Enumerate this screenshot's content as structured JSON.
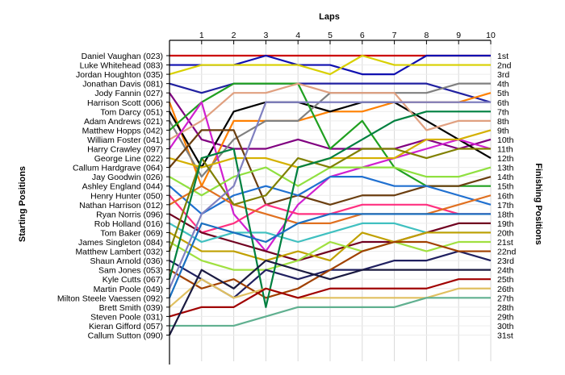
{
  "chart_data": {
    "type": "line",
    "title": "",
    "xlabel": "Laps",
    "ylabel_left": "Starting Positions",
    "ylabel_right": "Finishing Positions",
    "laps": [
      "1",
      "2",
      "3",
      "4",
      "5",
      "6",
      "7",
      "8",
      "9",
      "10"
    ],
    "finishing_positions": [
      "1st",
      "2nd",
      "3rd",
      "4th",
      "5th",
      "6th",
      "7th",
      "8th",
      "9th",
      "10th",
      "11th",
      "12th",
      "13th",
      "14th",
      "15th",
      "16th",
      "17th",
      "18th",
      "19th",
      "20th",
      "21st",
      "22nd",
      "23rd",
      "24th",
      "25th",
      "26th",
      "27th",
      "28th",
      "29th",
      "30th",
      "31st"
    ],
    "grid": true,
    "series": [
      {
        "name": "Daniel Vaughan (023)",
        "color": "#cc0000",
        "positions": [
          1,
          1,
          1,
          1,
          1,
          1,
          1,
          1,
          1,
          1,
          1
        ]
      },
      {
        "name": "Luke Whitehead (083)",
        "color": "#1010b0",
        "positions": [
          2,
          2,
          2,
          1,
          2,
          2,
          3,
          3,
          1,
          1,
          1
        ]
      },
      {
        "name": "Jordan Houghton (035)",
        "color": "#d8d000",
        "positions": [
          3,
          2,
          2,
          2,
          2,
          3,
          1,
          2,
          2,
          2,
          2
        ]
      },
      {
        "name": "Jonathan Davis (081)",
        "color": "#2020a0",
        "positions": [
          4,
          5,
          4,
          4,
          4,
          4,
          4,
          4,
          4,
          5,
          6
        ]
      },
      {
        "name": "Jody Fannin (027)",
        "color": "#800080",
        "positions": [
          5,
          10,
          11,
          11,
          10,
          11,
          11,
          11,
          10,
          11,
          10
        ]
      },
      {
        "name": "Harrison Scott (006)",
        "color": "#ff8000",
        "positions": [
          6,
          15,
          8,
          8,
          8,
          7,
          7,
          6,
          6,
          6,
          5
        ]
      },
      {
        "name": "Tom Darcy (051)",
        "color": "#000000",
        "positions": [
          7,
          13,
          7,
          6,
          6,
          7,
          6,
          6,
          8,
          10,
          12
        ]
      },
      {
        "name": "Adam Andrews (021)",
        "color": "#808080",
        "positions": [
          8,
          14,
          10,
          8,
          8,
          5,
          5,
          5,
          5,
          4,
          4
        ]
      },
      {
        "name": "Matthew Hopps (042)",
        "color": "#20a020",
        "positions": [
          9,
          6,
          4,
          4,
          4,
          11,
          8,
          13,
          15,
          15,
          15
        ]
      },
      {
        "name": "William Foster (041)",
        "color": "#e0a080",
        "positions": [
          10,
          8,
          5,
          5,
          4,
          5,
          5,
          5,
          9,
          8,
          8
        ]
      },
      {
        "name": "Harry Crawley (097)",
        "color": "#d020d0",
        "positions": [
          11,
          6,
          18,
          22,
          17,
          14,
          13,
          12,
          11,
          10,
          11
        ]
      },
      {
        "name": "George Line (022)",
        "color": "#d4b000",
        "positions": [
          12,
          13,
          12,
          12,
          13,
          12,
          12,
          12,
          10,
          10,
          9
        ]
      },
      {
        "name": "Callum Hardgrave (064)",
        "color": "#6b3f10",
        "positions": [
          13,
          9,
          9,
          17,
          16,
          17,
          16,
          16,
          15,
          15,
          14
        ]
      },
      {
        "name": "Jay Goodwin (026)",
        "color": "#90e040",
        "positions": [
          14,
          16,
          14,
          13,
          15,
          13,
          13,
          13,
          14,
          14,
          13
        ]
      },
      {
        "name": "Ashley England (044)",
        "color": "#2070d0",
        "positions": [
          15,
          18,
          16,
          15,
          16,
          14,
          14,
          15,
          15,
          16,
          17
        ]
      },
      {
        "name": "Henry Hunter (050)",
        "color": "#ff3080",
        "positions": [
          16,
          20,
          19,
          17,
          18,
          18,
          17,
          17,
          17,
          18,
          18
        ]
      },
      {
        "name": "Nathan Harrison (012)",
        "color": "#e07020",
        "positions": [
          17,
          15,
          17,
          18,
          19,
          19,
          18,
          18,
          18,
          17,
          16
        ]
      },
      {
        "name": "Ryan Norris (096)",
        "color": "#700020",
        "positions": [
          18,
          20,
          21,
          22,
          23,
          22,
          21,
          21,
          20,
          19,
          19
        ]
      },
      {
        "name": "Rob Holland (016)",
        "color": "#40c0c0",
        "positions": [
          19,
          21,
          20,
          20,
          21,
          20,
          19,
          19,
          20,
          20,
          20
        ]
      },
      {
        "name": "Tom Baker (069)",
        "color": "#c0a000",
        "positions": [
          20,
          22,
          22,
          23,
          22,
          23,
          20,
          21,
          20,
          20,
          20
        ]
      },
      {
        "name": "James Singleton (084)",
        "color": "#a0e040",
        "positions": [
          21,
          23,
          24,
          24,
          23,
          21,
          22,
          21,
          22,
          21,
          21
        ]
      },
      {
        "name": "Matthew Lambert (032)",
        "color": "#808000",
        "positions": [
          22,
          12,
          17,
          16,
          12,
          13,
          11,
          11,
          12,
          11,
          11
        ]
      },
      {
        "name": "Shaun Arnold (036)",
        "color": "#202060",
        "positions": [
          23,
          25,
          27,
          24,
          25,
          24,
          24,
          23,
          23,
          22,
          23
        ]
      },
      {
        "name": "Sam Jones (053)",
        "color": "#a04000",
        "positions": [
          24,
          26,
          25,
          27,
          26,
          24,
          22,
          21,
          21,
          22,
          22
        ]
      },
      {
        "name": "Kyle Cutts (067)",
        "color": "#008040",
        "positions": [
          25,
          12,
          11,
          28,
          13,
          12,
          10,
          8,
          7,
          7,
          7
        ]
      },
      {
        "name": "Martin Poole (049)",
        "color": "#8080c0",
        "positions": [
          26,
          18,
          15,
          6,
          6,
          6,
          6,
          6,
          6,
          6,
          6
        ]
      },
      {
        "name": "Milton Steele Vaessen (092)",
        "color": "#1a6fc0",
        "positions": [
          27,
          19,
          20,
          21,
          19,
          18,
          18,
          18,
          18,
          18,
          18
        ]
      },
      {
        "name": "Brett Smith (039)",
        "color": "#e0c060",
        "positions": [
          28,
          25,
          27,
          26,
          27,
          27,
          27,
          27,
          27,
          26,
          26
        ]
      },
      {
        "name": "Steven Poole (031)",
        "color": "#a00000",
        "positions": [
          29,
          28,
          28,
          26,
          27,
          26,
          26,
          26,
          26,
          25,
          25
        ]
      },
      {
        "name": "Kieran Gifford (057)",
        "color": "#60b090",
        "positions": [
          30,
          30,
          30,
          29,
          28,
          28,
          28,
          28,
          27,
          27,
          27
        ]
      },
      {
        "name": "Callum Sutton (090)",
        "color": "#1a1a40",
        "positions": [
          31,
          24,
          26,
          23,
          24,
          25,
          24,
          24,
          24,
          24,
          24
        ]
      }
    ]
  }
}
